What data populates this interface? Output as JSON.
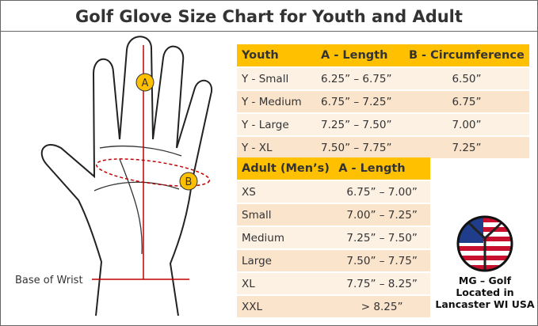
{
  "title": "Golf Glove Size Chart for Youth and Adult",
  "diagram": {
    "marker_a": "A",
    "marker_b": "B",
    "wrist_label": "Base of Wrist"
  },
  "youth_table": {
    "header": [
      "Youth",
      "A - Length",
      "B - Circumference"
    ],
    "rows": [
      [
        "Y - Small",
        "6.25” – 6.75”",
        "6.50”"
      ],
      [
        "Y - Medium",
        "6.75” – 7.25”",
        "6.75”"
      ],
      [
        "Y - Large",
        "7.25” – 7.50”",
        "7.00”"
      ],
      [
        "Y - XL",
        "7.50” – 7.75”",
        "7.25”"
      ]
    ]
  },
  "adult_table": {
    "header": [
      "Adult (Men’s)",
      "A - Length"
    ],
    "rows": [
      [
        "XS",
        "6.75” – 7.00”"
      ],
      [
        "Small",
        "7.00” – 7.25”"
      ],
      [
        "Medium",
        "7.25” – 7.50”"
      ],
      [
        "Large",
        "7.50” – 7.75”"
      ],
      [
        "XL",
        "7.75” – 8.25”"
      ],
      [
        "XXL",
        "> 8.25”"
      ]
    ]
  },
  "badge": {
    "lines": [
      "MG – Golf",
      "Located in",
      "Lancaster WI USA"
    ]
  }
}
